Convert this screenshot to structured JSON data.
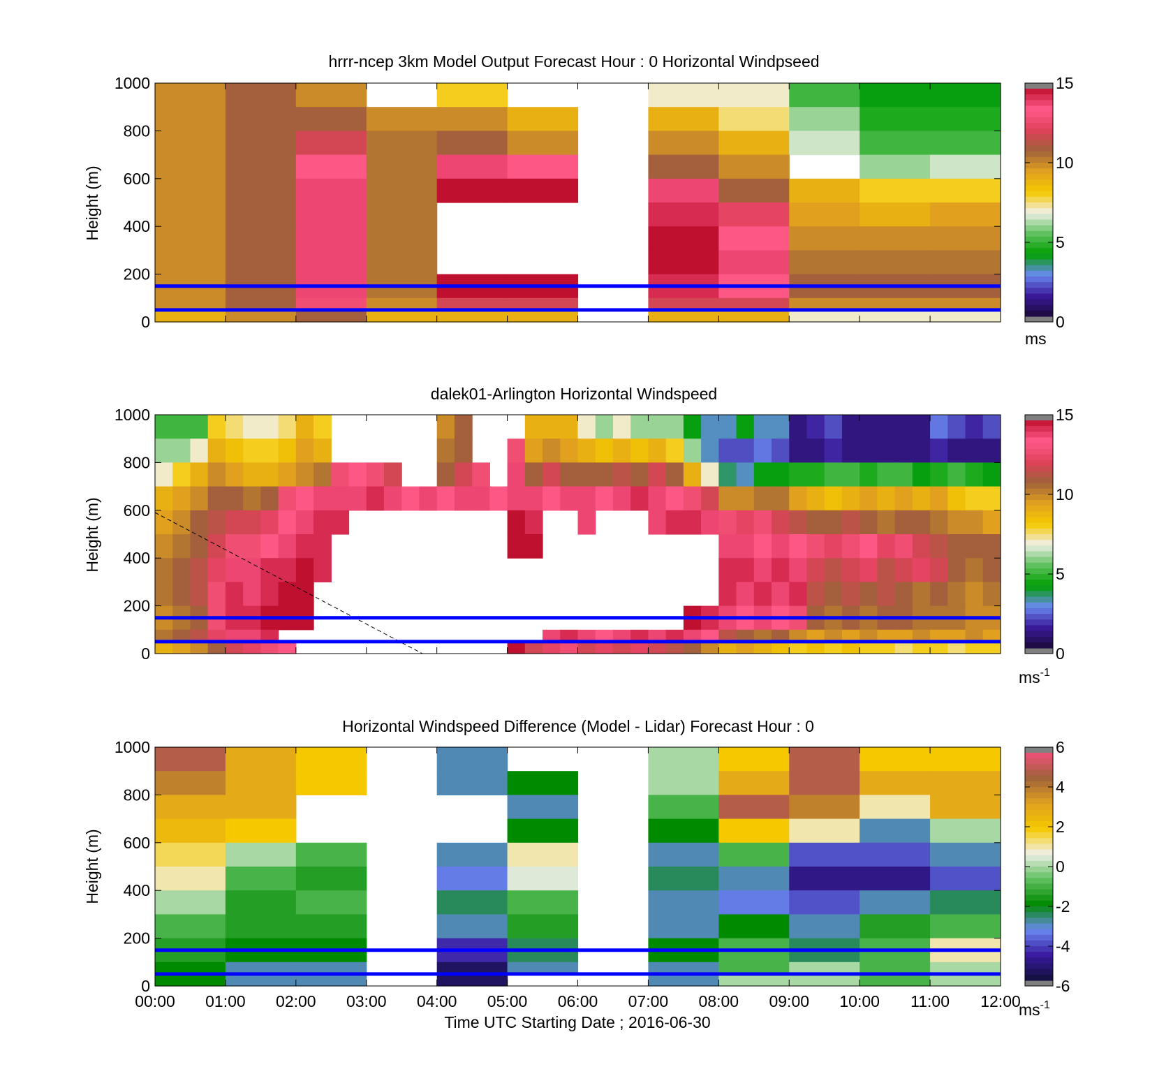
{
  "colors": {
    "reference_line": "#0000ff",
    "missing_gray": "#808080",
    "speed_colormap": [
      "#1a0a3a",
      "#3b1a9a",
      "#6a8af0",
      "#00a000",
      "#60c060",
      "#f0f0e8",
      "#f5c800",
      "#e0a020",
      "#a0623a",
      "#e0405a",
      "#ff5a8a",
      "#c01030"
    ],
    "diff_colormap": [
      "#10103a",
      "#3a1aa0",
      "#6a8af0",
      "#008a00",
      "#60c060",
      "#f0f0e8",
      "#f5c800",
      "#e0a020",
      "#a0623a",
      "#f0507a"
    ]
  },
  "chart_data": [
    {
      "type": "heatmap",
      "title": "hrrr-ncep 3km Model Output   Forecast Hour : 0 Horizontal Windpseed",
      "ylabel": "Height (m)",
      "ylim": [
        0,
        1000
      ],
      "yticks": [
        "0",
        "200",
        "400",
        "600",
        "800",
        "1000"
      ],
      "xlim": [
        "00:00",
        "12:00"
      ],
      "x_grid": [
        "00:00",
        "01:00",
        "02:00",
        "03:00",
        "04:00",
        "05:00",
        "06:00",
        "07:00",
        "08:00",
        "09:00",
        "10:00",
        "11:00"
      ],
      "heights": [
        1000,
        900,
        800,
        700,
        600,
        500,
        400,
        300,
        200,
        100,
        50
      ],
      "values": [
        [
          10,
          11,
          10,
          null,
          8,
          null,
          null,
          7,
          7,
          5,
          4,
          4
        ],
        [
          10,
          11,
          11,
          10,
          10,
          9,
          null,
          9,
          7.5,
          6,
          4.5,
          4.5
        ],
        [
          10,
          11,
          12,
          10.5,
          11,
          10,
          null,
          10,
          9,
          6.5,
          5,
          5
        ],
        [
          10,
          11,
          13.5,
          10.5,
          14,
          13.5,
          null,
          11,
          10,
          null,
          6,
          6.5
        ],
        [
          10,
          11,
          14,
          10.5,
          15,
          15,
          null,
          14,
          11,
          9,
          8,
          8
        ],
        [
          10,
          11,
          14,
          10.5,
          null,
          null,
          null,
          14.5,
          12.5,
          9.5,
          9,
          9.5
        ],
        [
          10,
          11,
          14,
          10.5,
          null,
          null,
          null,
          15,
          13.5,
          10,
          10,
          10
        ],
        [
          10,
          11,
          14,
          10.5,
          null,
          null,
          null,
          15,
          14,
          10.5,
          10.5,
          10.5
        ],
        [
          10,
          11,
          14,
          10.5,
          15,
          15,
          null,
          14.5,
          13.5,
          11,
          11,
          11
        ],
        [
          10,
          11,
          13,
          10,
          12,
          12,
          null,
          12,
          12,
          10,
          10,
          10
        ],
        [
          9,
          10,
          11,
          9,
          9,
          9,
          null,
          9,
          9,
          7,
          7,
          7
        ]
      ],
      "reference_heights": [
        150,
        50
      ],
      "colorbar": {
        "ticks": [
          "0",
          "5",
          "10",
          "15"
        ],
        "label": "ms",
        "range": [
          0,
          15
        ]
      }
    },
    {
      "type": "heatmap",
      "title": "dalek01-Arlington  Horizontal Windspeed",
      "ylabel": "Height (m)",
      "ylim": [
        0,
        1000
      ],
      "yticks": [
        "0",
        "200",
        "400",
        "600",
        "800",
        "1000"
      ],
      "xlim": [
        "00:00",
        "12:00"
      ],
      "x_grid": [
        "00:00",
        "00:15",
        "00:30",
        "00:45",
        "01:00",
        "01:15",
        "01:30",
        "01:45",
        "02:00",
        "02:15",
        "02:30",
        "02:45",
        "03:00",
        "03:15",
        "03:30",
        "03:45",
        "04:00",
        "04:15",
        "04:30",
        "04:45",
        "05:00",
        "05:15",
        "05:30",
        "05:45",
        "06:00",
        "06:15",
        "06:30",
        "06:45",
        "07:00",
        "07:15",
        "07:30",
        "07:45",
        "08:00",
        "08:15",
        "08:30",
        "08:45",
        "09:00",
        "09:15",
        "09:30",
        "09:45",
        "10:00",
        "10:15",
        "10:30",
        "10:45",
        "11:00",
        "11:15",
        "11:30",
        "11:45"
      ],
      "heights": [
        1000,
        900,
        800,
        700,
        600,
        500,
        400,
        300,
        200,
        100,
        50
      ],
      "values": [
        [
          5,
          5,
          5,
          8,
          7.5,
          7,
          7,
          7.5,
          9,
          8,
          null,
          null,
          null,
          null,
          null,
          null,
          10,
          11,
          null,
          null,
          null,
          9,
          9,
          9,
          7,
          6,
          7,
          6,
          6,
          6,
          4,
          3,
          3,
          4,
          3,
          3,
          1,
          1.5,
          2,
          1,
          1,
          1,
          1,
          1,
          2.5,
          2,
          1.5,
          2
        ],
        [
          6,
          6,
          7,
          9,
          8.5,
          8,
          8,
          8.5,
          9.5,
          9,
          null,
          null,
          null,
          null,
          null,
          null,
          10.5,
          11,
          null,
          null,
          13,
          9.5,
          10,
          9.5,
          9,
          8.5,
          9,
          8.5,
          9,
          8,
          6,
          3,
          2,
          2,
          2.5,
          2,
          1,
          1,
          1.5,
          1,
          1,
          1,
          1,
          1,
          1.5,
          1,
          1,
          1
        ],
        [
          7,
          8,
          9,
          10,
          9.5,
          9,
          9,
          9.5,
          10,
          10.5,
          13,
          13.5,
          13,
          12,
          null,
          null,
          11,
          12,
          13,
          null,
          14,
          11,
          12,
          11,
          11,
          11,
          11.5,
          11,
          12,
          11,
          9,
          7,
          3.5,
          3,
          4,
          4,
          4.5,
          4.5,
          5,
          5,
          4.5,
          5,
          5,
          4,
          4.5,
          5,
          4.5,
          4
        ],
        [
          9,
          9.5,
          10,
          11,
          11,
          10.5,
          11,
          13,
          13.5,
          14,
          14,
          14,
          14.5,
          14,
          13.5,
          14,
          13.5,
          14,
          14,
          13.5,
          14,
          14,
          13.5,
          14,
          14,
          13.5,
          14,
          14.5,
          14,
          13.5,
          13,
          12,
          10,
          10,
          10.5,
          10.5,
          9.5,
          9,
          8.5,
          9,
          9.5,
          9,
          9.5,
          9,
          9.5,
          8.5,
          8,
          8
        ],
        [
          9.5,
          10,
          11,
          11.5,
          12,
          12,
          12.5,
          13.5,
          14,
          14.5,
          14.5,
          null,
          null,
          null,
          null,
          null,
          null,
          null,
          null,
          null,
          15,
          14.5,
          null,
          null,
          14,
          null,
          null,
          null,
          14,
          14.5,
          14.5,
          14,
          13,
          12.5,
          13,
          12,
          11.5,
          11,
          11,
          11.5,
          11,
          10.5,
          11,
          11,
          10.5,
          10,
          10,
          9.5
        ],
        [
          10,
          10.5,
          11,
          12,
          13,
          13,
          13.5,
          14,
          14.5,
          14.5,
          null,
          null,
          null,
          null,
          null,
          null,
          null,
          null,
          null,
          null,
          15,
          15,
          null,
          null,
          null,
          null,
          null,
          null,
          null,
          null,
          null,
          null,
          14,
          14,
          13.5,
          14,
          13.5,
          13,
          12.5,
          13,
          13.5,
          12.5,
          13,
          12,
          11.5,
          11,
          11,
          11
        ],
        [
          10.5,
          11,
          11.5,
          12.5,
          14,
          14,
          14.5,
          14.5,
          15,
          14.5,
          null,
          null,
          null,
          null,
          null,
          null,
          null,
          null,
          null,
          null,
          null,
          null,
          null,
          null,
          null,
          null,
          null,
          null,
          null,
          null,
          null,
          null,
          14.5,
          14.5,
          14,
          14.5,
          14,
          12,
          11.5,
          12,
          12.5,
          11.5,
          12,
          12.5,
          12,
          11,
          10.5,
          11
        ],
        [
          10.5,
          11,
          11.5,
          13,
          14.5,
          14,
          14.5,
          15,
          15,
          null,
          null,
          null,
          null,
          null,
          null,
          null,
          null,
          null,
          null,
          null,
          null,
          null,
          null,
          null,
          null,
          null,
          null,
          null,
          null,
          null,
          null,
          null,
          14.5,
          14,
          14.5,
          14,
          14.5,
          11.5,
          11,
          11.5,
          11,
          11.5,
          11,
          10.5,
          11,
          10.5,
          10,
          10.5
        ],
        [
          10,
          10.5,
          11,
          13,
          14.5,
          14.5,
          15,
          15,
          15,
          null,
          null,
          null,
          null,
          null,
          null,
          null,
          null,
          null,
          null,
          null,
          null,
          null,
          null,
          null,
          null,
          null,
          null,
          null,
          null,
          null,
          15,
          14.5,
          14,
          13.5,
          14,
          13.5,
          13,
          11,
          10.5,
          11,
          10.5,
          11,
          11,
          10.5,
          10.5,
          10.5,
          10,
          10
        ],
        [
          10.5,
          11,
          11.5,
          12.5,
          14,
          14,
          14.5,
          null,
          null,
          null,
          null,
          null,
          null,
          null,
          null,
          null,
          null,
          null,
          null,
          null,
          null,
          null,
          14,
          14.5,
          14,
          13.5,
          14,
          14.5,
          14,
          14.5,
          14,
          13.5,
          11.5,
          11,
          10.5,
          11,
          10,
          9.5,
          10,
          9.5,
          10,
          9.5,
          9.5,
          10,
          9.5,
          9.5,
          10,
          9.5
        ],
        [
          9,
          9.5,
          10,
          11,
          12,
          12.5,
          13,
          13.5,
          null,
          null,
          null,
          null,
          null,
          null,
          null,
          null,
          null,
          null,
          null,
          null,
          15,
          12,
          12.5,
          13,
          12,
          12.5,
          12,
          12.5,
          12,
          11.5,
          11,
          10,
          9,
          9.5,
          9,
          8.5,
          8,
          8.5,
          8,
          8.5,
          8,
          8,
          7.5,
          8,
          8,
          7.5,
          8,
          8
        ]
      ],
      "reference_heights": [
        150,
        50
      ],
      "colorbar": {
        "ticks": [
          "0",
          "5",
          "10",
          "15"
        ],
        "label": "ms",
        "label_exponent": "-1",
        "range": [
          0,
          15
        ]
      }
    },
    {
      "type": "heatmap",
      "title": "Horizontal Windspeed Difference (Model - Lidar) Forecast Hour : 0",
      "ylabel": "Height (m)",
      "xlabel": "Time UTC  Starting Date ; 2016-06-30",
      "ylim": [
        0,
        1000
      ],
      "yticks": [
        "0",
        "200",
        "400",
        "600",
        "800",
        "1000"
      ],
      "xticks": [
        "00:00",
        "01:00",
        "02:00",
        "03:00",
        "04:00",
        "05:00",
        "06:00",
        "07:00",
        "08:00",
        "09:00",
        "10:00",
        "11:00",
        "12:00"
      ],
      "x_grid": [
        "00:00",
        "01:00",
        "02:00",
        "03:00",
        "04:00",
        "05:00",
        "06:00",
        "07:00",
        "08:00",
        "09:00",
        "10:00",
        "11:00"
      ],
      "heights": [
        1000,
        900,
        800,
        700,
        600,
        500,
        400,
        300,
        200,
        100,
        50
      ],
      "values": [
        [
          5,
          3,
          2,
          null,
          -3,
          null,
          null,
          0,
          2,
          5,
          2,
          2
        ],
        [
          4,
          3,
          2,
          null,
          -3,
          -2,
          null,
          0,
          3,
          5,
          3,
          3
        ],
        [
          3,
          3,
          null,
          null,
          null,
          -3,
          null,
          -1,
          5,
          4,
          1,
          3
        ],
        [
          2.5,
          2,
          null,
          null,
          null,
          -2,
          null,
          -2,
          2,
          1,
          -3,
          0
        ],
        [
          1.5,
          0,
          -1,
          null,
          -3,
          1,
          null,
          -3,
          -1,
          -4,
          -4,
          -3
        ],
        [
          1,
          -1,
          -1.5,
          null,
          -3.5,
          0.5,
          null,
          -2.5,
          -3,
          -5,
          -5,
          -4
        ],
        [
          0,
          -1.5,
          -1,
          null,
          -2.5,
          -1,
          null,
          -3,
          -3.5,
          -4,
          -3,
          -2.5
        ],
        [
          -1,
          -1.5,
          -1.5,
          null,
          -3,
          -1.5,
          null,
          -3,
          -2,
          -3,
          -1.5,
          -1
        ],
        [
          -1.5,
          -2,
          -2,
          null,
          -4.5,
          -2.5,
          null,
          -2,
          -1,
          -2.5,
          -1,
          1
        ],
        [
          -2,
          -3,
          -3,
          null,
          -5.5,
          -3,
          null,
          -3,
          -1,
          0,
          -1,
          0
        ],
        [
          -2,
          -3,
          -3,
          null,
          -5.5,
          null,
          null,
          -3,
          0,
          0,
          -1,
          0
        ]
      ],
      "reference_heights": [
        150,
        50
      ],
      "colorbar": {
        "ticks": [
          "-6",
          "-4",
          "-2",
          "0",
          "2",
          "4",
          "6"
        ],
        "label": "ms",
        "label_exponent": "-1",
        "range": [
          -6,
          6
        ]
      }
    }
  ]
}
